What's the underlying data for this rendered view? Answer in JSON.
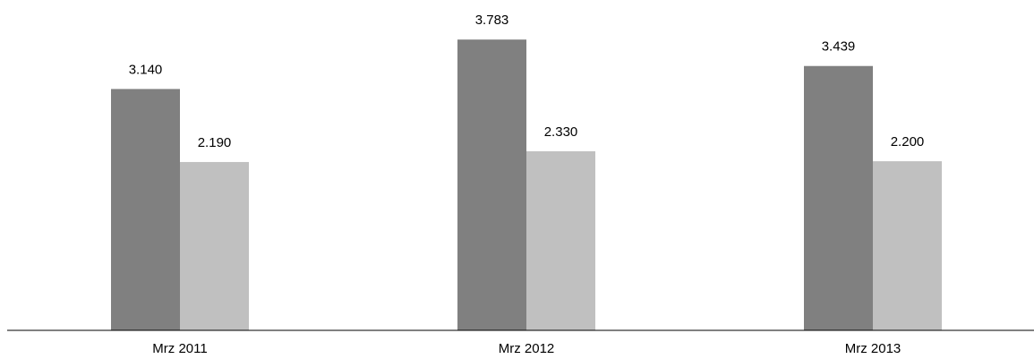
{
  "chart_data": {
    "type": "bar",
    "title": "",
    "xlabel": "",
    "ylabel": "",
    "categories": [
      "Mrz 2011",
      "Mrz 2012",
      "Mrz 2013"
    ],
    "series": [
      {
        "values": [
          3140,
          3783,
          3439
        ],
        "labels": [
          "3.140",
          "3.783",
          "3.439"
        ],
        "color": "#808080"
      },
      {
        "values": [
          2190,
          2330,
          2200
        ],
        "labels": [
          "2.190",
          "2.330",
          "2.200"
        ],
        "color": "#c0c0c0"
      }
    ],
    "ylim": [
      0,
      4000
    ],
    "grid": false,
    "legend": "none"
  }
}
